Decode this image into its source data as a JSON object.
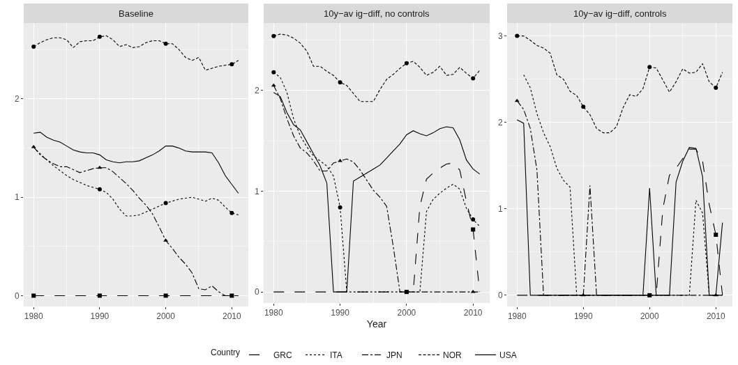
{
  "chart_data": [
    {
      "type": "line",
      "title": "Baseline",
      "x": [
        1980,
        1981,
        1982,
        1983,
        1984,
        1985,
        1986,
        1987,
        1988,
        1989,
        1990,
        1991,
        1992,
        1993,
        1994,
        1995,
        1996,
        1997,
        1998,
        1999,
        2000,
        2001,
        2002,
        2003,
        2004,
        2005,
        2006,
        2007,
        2008,
        2009,
        2010,
        2011
      ],
      "xlim": [
        1978.5,
        2012.5
      ],
      "xticks": [
        1980,
        1990,
        2000,
        2010
      ],
      "ylim": [
        -0.11,
        2.77
      ],
      "yticks": [
        0,
        1,
        2
      ],
      "grid": true,
      "series": [
        {
          "color": "#000000",
          "line_style": "longdash",
          "values": [
            0,
            0,
            0,
            0,
            0,
            0,
            0,
            0,
            0,
            0,
            0,
            0,
            0,
            0,
            0,
            0,
            0,
            0,
            0,
            0,
            0,
            0,
            0,
            0,
            0,
            0,
            0,
            0,
            0,
            0,
            0,
            0
          ]
        },
        {
          "color": "#000000",
          "line_style": "dotted",
          "values": [
            1.51,
            1.44,
            1.38,
            1.32,
            1.27,
            1.22,
            1.18,
            1.15,
            1.12,
            1.1,
            1.08,
            1.05,
            0.98,
            0.88,
            0.81,
            0.81,
            0.82,
            0.85,
            0.88,
            0.91,
            0.94,
            0.96,
            0.98,
            0.99,
            1.0,
            0.98,
            0.96,
            0.99,
            0.97,
            0.9,
            0.84,
            0.82
          ]
        },
        {
          "color": "#000000",
          "line_style": "dashdot",
          "values": [
            1.51,
            1.43,
            1.38,
            1.34,
            1.31,
            1.31,
            1.28,
            1.25,
            1.27,
            1.29,
            1.3,
            1.3,
            1.26,
            1.2,
            1.14,
            1.07,
            0.99,
            0.92,
            0.83,
            0.7,
            0.56,
            0.48,
            0.39,
            0.32,
            0.23,
            0.07,
            0.06,
            0.1,
            0.04,
            0,
            0,
            0
          ]
        },
        {
          "color": "#000000",
          "line_style": "dashed",
          "values": [
            2.53,
            2.57,
            2.6,
            2.62,
            2.62,
            2.6,
            2.52,
            2.58,
            2.59,
            2.59,
            2.63,
            2.64,
            2.6,
            2.53,
            2.55,
            2.52,
            2.53,
            2.57,
            2.59,
            2.59,
            2.56,
            2.56,
            2.5,
            2.42,
            2.39,
            2.42,
            2.29,
            2.31,
            2.33,
            2.34,
            2.35,
            2.39
          ]
        },
        {
          "color": "#000000",
          "marker": "none",
          "line_style": "solid",
          "values": [
            1.65,
            1.66,
            1.61,
            1.58,
            1.56,
            1.52,
            1.48,
            1.46,
            1.45,
            1.45,
            1.43,
            1.38,
            1.36,
            1.35,
            1.36,
            1.36,
            1.37,
            1.4,
            1.43,
            1.47,
            1.52,
            1.52,
            1.5,
            1.47,
            1.46,
            1.46,
            1.46,
            1.45,
            1.35,
            1.22,
            1.13,
            1.04
          ]
        },
        {
          "type": "scatter",
          "color": "#000000",
          "marker": "square",
          "x": [
            1980,
            1990,
            2000,
            2010
          ],
          "values": [
            0,
            0,
            0,
            0
          ]
        },
        {
          "type": "scatter",
          "color": "#000000",
          "marker": "circle",
          "x": [
            1990,
            2000,
            2010
          ],
          "values": [
            1.08,
            0.94,
            0.84
          ]
        },
        {
          "type": "scatter",
          "color": "#000000",
          "marker": "triangle",
          "x": [
            1980,
            1990,
            2000
          ],
          "values": [
            1.51,
            1.3,
            0.56
          ]
        },
        {
          "type": "scatter",
          "color": "#000000",
          "marker": "circle",
          "x": [
            1980,
            1990,
            2000,
            2010
          ],
          "values": [
            2.53,
            2.63,
            2.56,
            2.35
          ]
        }
      ]
    },
    {
      "type": "line",
      "title": "10y−av ig−diff, no controls",
      "xlabel": "Year",
      "legend_title": "Country",
      "x": [
        1980,
        1981,
        1982,
        1983,
        1984,
        1985,
        1986,
        1987,
        1988,
        1989,
        1990,
        1991,
        1992,
        1993,
        1994,
        1995,
        1996,
        1997,
        1998,
        1999,
        2000,
        2001,
        2002,
        2003,
        2004,
        2005,
        2006,
        2007,
        2008,
        2009,
        2010,
        2011
      ],
      "xlim": [
        1978.5,
        2012.5
      ],
      "xticks": [
        1980,
        1990,
        2000,
        2010
      ],
      "ylim": [
        -0.11,
        2.67
      ],
      "yticks": [
        0,
        1,
        2
      ],
      "grid": true,
      "legend": "bottom",
      "series": [
        {
          "name": "GRC",
          "color": "#000000",
          "line_style": "longdash",
          "values": [
            0,
            0,
            0,
            0,
            0,
            0,
            0,
            0,
            0,
            0,
            0,
            0,
            0,
            0,
            0,
            0,
            0,
            0,
            0,
            0,
            0,
            0,
            0.85,
            1.12,
            1.18,
            1.23,
            1.27,
            1.28,
            1.21,
            0.9,
            0.62,
            0
          ]
        },
        {
          "name": "ITA",
          "color": "#000000",
          "line_style": "dotted",
          "values": [
            2.18,
            2.13,
            1.98,
            1.72,
            1.55,
            1.44,
            1.35,
            1.3,
            1.25,
            1.15,
            0.84,
            0,
            0,
            0,
            0,
            0,
            0,
            0,
            0,
            0,
            0,
            0,
            0,
            0.8,
            0.92,
            0.98,
            1.03,
            1.07,
            1.02,
            0.83,
            0.72,
            0.65
          ]
        },
        {
          "name": "JPN",
          "color": "#000000",
          "line_style": "dashdot",
          "values": [
            2.05,
            1.92,
            1.72,
            1.55,
            1.43,
            1.38,
            1.3,
            1.2,
            1.2,
            1.28,
            1.3,
            1.32,
            1.29,
            1.21,
            1.11,
            1.01,
            0.94,
            0.85,
            0.45,
            0,
            0,
            0,
            0,
            0,
            0,
            0,
            0,
            0,
            0,
            0,
            0,
            0
          ]
        },
        {
          "name": "NOR",
          "color": "#000000",
          "line_style": "dashed",
          "values": [
            2.54,
            2.56,
            2.55,
            2.52,
            2.47,
            2.39,
            2.24,
            2.24,
            2.19,
            2.15,
            2.08,
            2.05,
            1.97,
            1.89,
            1.89,
            1.89,
            2.01,
            2.11,
            2.16,
            2.22,
            2.27,
            2.29,
            2.23,
            2.15,
            2.18,
            2.24,
            2.15,
            2.16,
            2.23,
            2.17,
            2.12,
            2.2
          ]
        },
        {
          "name": "USA",
          "color": "#000000",
          "marker": "none",
          "line_style": "solid",
          "values": [
            1.98,
            1.94,
            1.78,
            1.66,
            1.61,
            1.49,
            1.37,
            1.25,
            1.08,
            0,
            0,
            0,
            1.1,
            1.14,
            1.18,
            1.22,
            1.26,
            1.33,
            1.4,
            1.47,
            1.56,
            1.6,
            1.57,
            1.55,
            1.58,
            1.62,
            1.64,
            1.63,
            1.51,
            1.31,
            1.22,
            1.17
          ]
        },
        {
          "type": "scatter",
          "color": "#000000",
          "marker": "square",
          "x": [
            2000,
            2010
          ],
          "values": [
            0,
            0.62
          ]
        },
        {
          "type": "scatter",
          "color": "#000000",
          "marker": "circle",
          "x": [
            1980,
            1990,
            2010
          ],
          "values": [
            2.18,
            0.84,
            0.72
          ]
        },
        {
          "type": "scatter",
          "color": "#000000",
          "marker": "triangle",
          "x": [
            1980,
            1990,
            2010
          ],
          "values": [
            2.05,
            1.3,
            0
          ]
        },
        {
          "type": "scatter",
          "color": "#000000",
          "marker": "circle",
          "x": [
            1980,
            1990,
            2000,
            2010
          ],
          "values": [
            2.54,
            2.08,
            2.27,
            2.12
          ]
        }
      ]
    },
    {
      "type": "line",
      "title": "10y−av ig−diff, controls",
      "x": [
        1980,
        1981,
        1982,
        1983,
        1984,
        1985,
        1986,
        1987,
        1988,
        1989,
        1990,
        1991,
        1992,
        1993,
        1994,
        1995,
        1996,
        1997,
        1998,
        1999,
        2000,
        2001,
        2002,
        2003,
        2004,
        2005,
        2006,
        2007,
        2008,
        2009,
        2010,
        2011
      ],
      "xlim": [
        1978.5,
        2012.5
      ],
      "xticks": [
        1980,
        1990,
        2000,
        2010
      ],
      "ylim": [
        -0.13,
        3.15
      ],
      "yticks": [
        0,
        1,
        2,
        3
      ],
      "grid": true,
      "series": [
        {
          "color": "#000000",
          "line_style": "longdash",
          "values": [
            0,
            0,
            0,
            0,
            0,
            0,
            0,
            0,
            0,
            0,
            0,
            0,
            0,
            0,
            0,
            0,
            0,
            0,
            0,
            0,
            0,
            0,
            1.0,
            1.39,
            1.47,
            1.58,
            1.69,
            1.69,
            1.55,
            1.05,
            0.7,
            0
          ]
        },
        {
          "color": "#000000",
          "line_style": "dotted",
          "values": [
            null,
            2.55,
            2.4,
            2.1,
            1.88,
            1.72,
            1.47,
            1.33,
            1.25,
            0,
            0,
            0,
            0,
            0,
            0,
            0,
            0,
            0,
            0,
            0,
            0,
            0,
            0,
            0,
            0,
            0,
            0,
            1.1,
            0.95,
            0,
            0,
            0
          ]
        },
        {
          "color": "#000000",
          "line_style": "dashdot",
          "values": [
            2.25,
            2.15,
            1.93,
            1.45,
            0,
            0,
            0,
            0,
            0,
            0,
            0,
            1.27,
            0,
            0,
            0,
            0,
            0,
            0,
            0,
            0,
            0,
            0,
            0,
            0,
            0,
            0,
            0,
            0,
            0,
            0,
            0,
            0
          ]
        },
        {
          "color": "#000000",
          "line_style": "dashed",
          "values": [
            3.0,
            3.0,
            2.95,
            2.89,
            2.86,
            2.8,
            2.55,
            2.5,
            2.36,
            2.31,
            2.18,
            2.09,
            1.93,
            1.88,
            1.88,
            1.95,
            2.17,
            2.32,
            2.3,
            2.39,
            2.64,
            2.63,
            2.49,
            2.35,
            2.47,
            2.62,
            2.57,
            2.58,
            2.68,
            2.47,
            2.4,
            2.58
          ]
        },
        {
          "color": "#000000",
          "marker": "none",
          "line_style": "solid",
          "values": [
            2.03,
            1.99,
            0,
            0,
            0,
            0,
            0,
            0,
            0,
            0,
            0,
            0,
            0,
            0,
            0,
            0,
            0,
            0,
            0,
            0,
            1.24,
            0,
            0,
            0,
            1.31,
            1.55,
            1.71,
            1.7,
            1.37,
            0,
            0,
            0.84
          ]
        },
        {
          "type": "scatter",
          "color": "#000000",
          "marker": "square",
          "x": [
            2000,
            2010
          ],
          "values": [
            0,
            0.7
          ]
        },
        {
          "type": "scatter",
          "color": "#000000",
          "marker": "triangle",
          "x": [
            1980,
            1990,
            2010
          ],
          "values": [
            2.25,
            0,
            0
          ]
        },
        {
          "type": "scatter",
          "color": "#000000",
          "marker": "circle",
          "x": [
            1980,
            1990,
            2000,
            2010
          ],
          "values": [
            3.0,
            2.18,
            2.64,
            2.4
          ]
        }
      ]
    }
  ]
}
